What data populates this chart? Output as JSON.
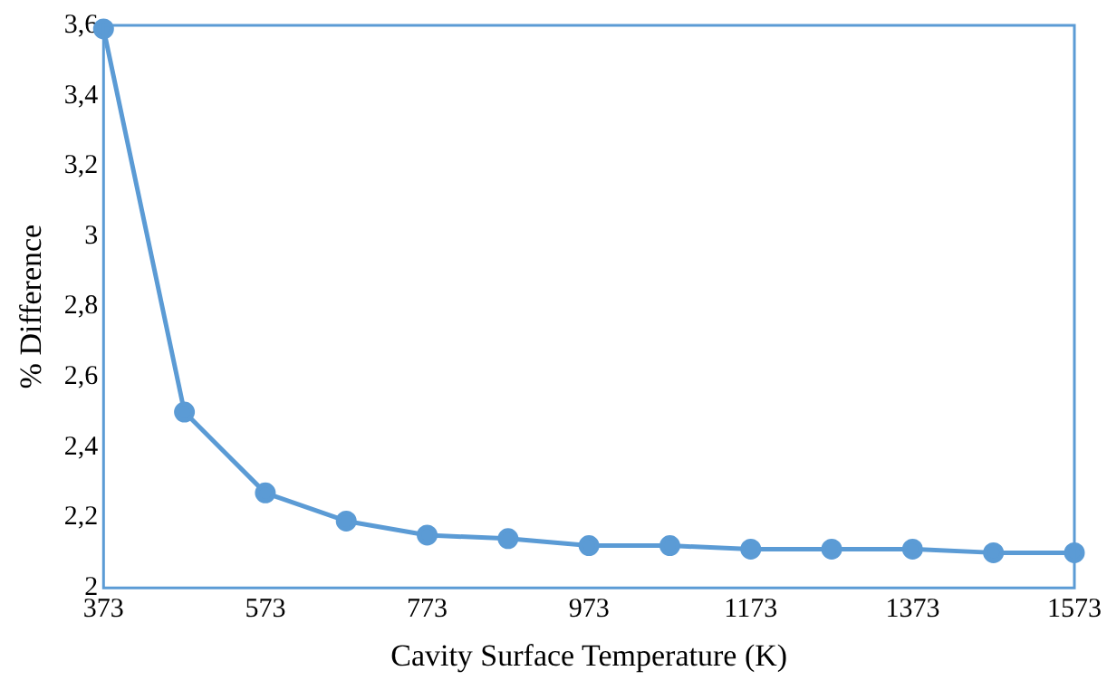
{
  "chart_data": {
    "type": "line",
    "xlabel": "Cavity Surface Temperature (K)",
    "ylabel": "% Difference",
    "x": [
      373,
      473,
      573,
      673,
      773,
      873,
      973,
      1073,
      1173,
      1273,
      1373,
      1473,
      1573
    ],
    "series": [
      {
        "color": "#5b9bd5",
        "values": [
          3.59,
          2.5,
          2.27,
          2.19,
          2.15,
          2.14,
          2.12,
          2.12,
          2.11,
          2.11,
          2.11,
          2.1,
          2.1
        ]
      }
    ],
    "xlim": [
      373,
      1573
    ],
    "xticks": [
      373,
      573,
      773,
      973,
      1173,
      1373,
      1573
    ],
    "ylim": [
      2,
      3.6
    ],
    "yticks": [
      2,
      {
        "value": 2.2,
        "label": "2,2"
      },
      {
        "value": 2.4,
        "label": "2,4"
      },
      {
        "value": 2.6,
        "label": "2,6"
      },
      {
        "value": 2.8,
        "label": "2,8"
      },
      3,
      {
        "value": 3.2,
        "label": "3,2"
      },
      {
        "value": 3.4,
        "label": "3,4"
      },
      {
        "value": 3.6,
        "label": "3,6"
      }
    ],
    "grid": false,
    "legend": false,
    "marker": "circle",
    "line_style": "solid"
  }
}
